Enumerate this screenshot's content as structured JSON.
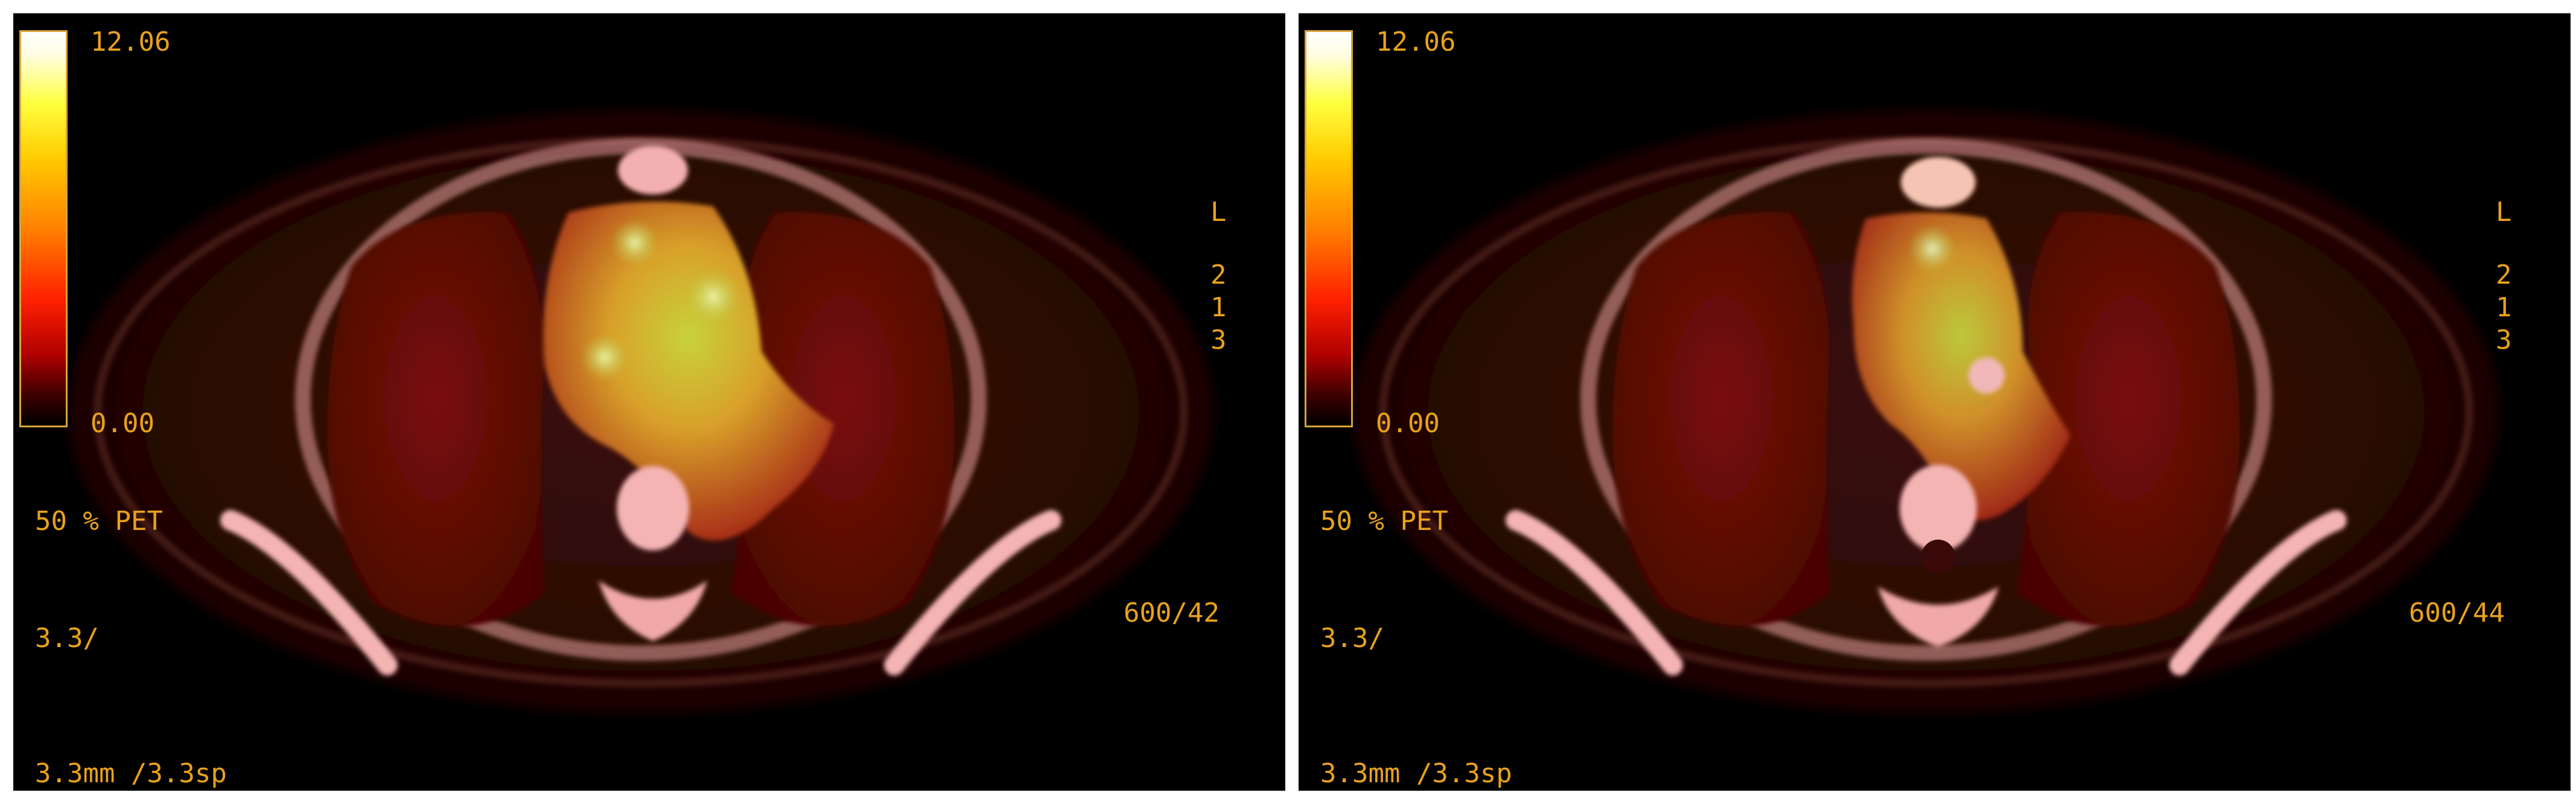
{
  "panels": [
    {
      "colorbar_max": "12.06",
      "colorbar_min": "0.00",
      "pet_percent": "50 % PET",
      "thickness": "3.3/",
      "slice_spacing": "3.3mm /3.3sp",
      "window_level": "600/42",
      "orientation": "L",
      "series_a": "2",
      "series_b": "1",
      "series_c": "3"
    },
    {
      "colorbar_max": "12.06",
      "colorbar_min": "0.00",
      "pet_percent": "50 % PET",
      "thickness": "3.3/",
      "slice_spacing": "3.3mm /3.3sp",
      "window_level": "600/44",
      "orientation": "L",
      "series_a": "2",
      "series_b": "1",
      "series_c": "3"
    }
  ],
  "colors": {
    "overlay_text": "#e8a21c",
    "background": "#000000",
    "colorbar_border": "#d9a43a"
  }
}
